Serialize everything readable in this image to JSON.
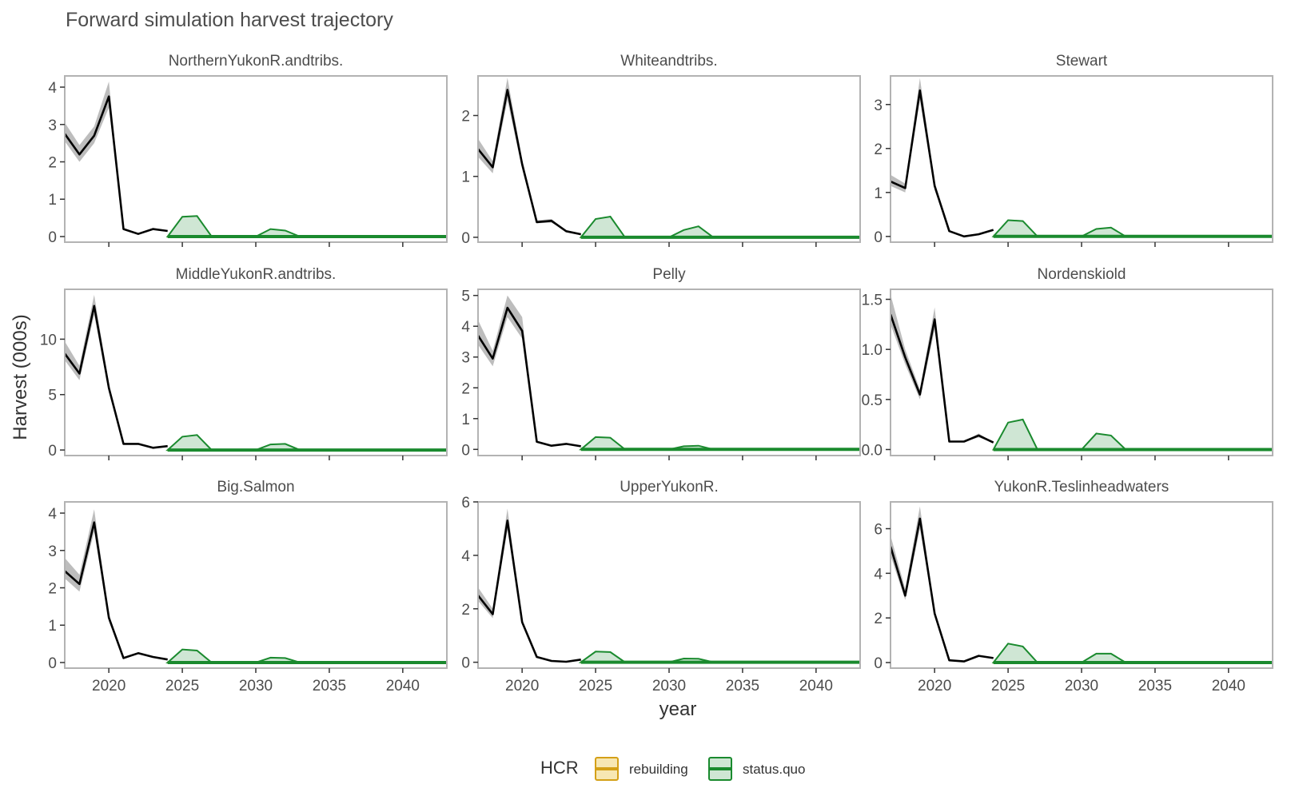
{
  "title": "Forward simulation harvest trajectory",
  "xlabel": "year",
  "ylabel": "Harvest (000s)",
  "legend": {
    "title": "HCR",
    "items": [
      {
        "label": "rebuilding",
        "line": "#d4a017",
        "fill": "#f7e7b3"
      },
      {
        "label": "status.quo",
        "line": "#1a8a2e",
        "fill": "#cfe6d4"
      }
    ]
  },
  "colors": {
    "historic_line": "#000000",
    "historic_band": "#bdbdbd",
    "panel_border": "#b3b3b3",
    "status_quo_line": "#1a8a2e",
    "status_quo_fill": "#cfe6d4",
    "rebuilding_line": "#d4a017"
  },
  "chart_data": [
    {
      "type": "line",
      "title": "NorthernYukonR.andtribs.",
      "xlim": [
        2017,
        2043
      ],
      "ylim": [
        -0.15,
        4.3
      ],
      "x_ticks": [
        2020,
        2025,
        2030,
        2035,
        2040
      ],
      "y_ticks": [
        "0",
        "1",
        "2",
        "3",
        "4"
      ],
      "y_tick_values": [
        0,
        1,
        2,
        3,
        4
      ],
      "historic": {
        "x": [
          2017,
          2018,
          2019,
          2020,
          2021,
          2022,
          2023,
          2024
        ],
        "y": [
          2.75,
          2.2,
          2.7,
          3.75,
          0.2,
          0.07,
          0.2,
          0.15
        ],
        "lo": [
          2.55,
          2.0,
          2.5,
          3.45,
          0.2,
          0.07,
          0.2,
          0.15
        ],
        "hi": [
          3.05,
          2.45,
          2.95,
          4.15,
          0.2,
          0.07,
          0.2,
          0.15
        ]
      },
      "status_quo": {
        "x": [
          2024,
          2025,
          2026,
          2027,
          2030,
          2031,
          2032,
          2033,
          2043
        ],
        "y": [
          0,
          0,
          0,
          0,
          0,
          0,
          0,
          0,
          0
        ],
        "upper": [
          0,
          0.53,
          0.55,
          0,
          0,
          0.2,
          0.16,
          0,
          0
        ]
      }
    },
    {
      "type": "line",
      "title": "Whiteandtribs.",
      "xlim": [
        2017,
        2043
      ],
      "ylim": [
        -0.08,
        2.65
      ],
      "x_ticks": [
        2020,
        2025,
        2030,
        2035,
        2040
      ],
      "y_ticks": [
        "0",
        "1",
        "2"
      ],
      "y_tick_values": [
        0,
        1,
        2
      ],
      "historic": {
        "x": [
          2017,
          2018,
          2019,
          2020,
          2021,
          2022,
          2023,
          2024
        ],
        "y": [
          1.45,
          1.15,
          2.42,
          1.2,
          0.25,
          0.27,
          0.1,
          0.05
        ],
        "lo": [
          1.32,
          1.05,
          2.25,
          1.12,
          0.23,
          0.24,
          0.1,
          0.05
        ],
        "hi": [
          1.62,
          1.25,
          2.62,
          1.28,
          0.28,
          0.3,
          0.1,
          0.05
        ]
      },
      "status_quo": {
        "x": [
          2024,
          2025,
          2026,
          2027,
          2030,
          2031,
          2032,
          2033,
          2043
        ],
        "y": [
          0,
          0,
          0,
          0,
          0,
          0,
          0,
          0,
          0
        ],
        "upper": [
          0,
          0.3,
          0.34,
          0,
          0,
          0.12,
          0.18,
          0,
          0
        ]
      }
    },
    {
      "type": "line",
      "title": "Stewart",
      "xlim": [
        2017,
        2043
      ],
      "ylim": [
        -0.13,
        3.65
      ],
      "x_ticks": [
        2020,
        2025,
        2030,
        2035,
        2040
      ],
      "y_ticks": [
        "0",
        "1",
        "2",
        "3"
      ],
      "y_tick_values": [
        0,
        1,
        2,
        3
      ],
      "historic": {
        "x": [
          2017,
          2018,
          2019,
          2020,
          2021,
          2022,
          2023,
          2024
        ],
        "y": [
          1.25,
          1.1,
          3.32,
          1.15,
          0.12,
          0.0,
          0.05,
          0.15
        ],
        "lo": [
          1.15,
          1.0,
          3.1,
          1.05,
          0.12,
          0.0,
          0.05,
          0.15
        ],
        "hi": [
          1.4,
          1.2,
          3.6,
          1.25,
          0.12,
          0.0,
          0.05,
          0.15
        ]
      },
      "status_quo": {
        "x": [
          2024,
          2025,
          2026,
          2027,
          2030,
          2031,
          2032,
          2033,
          2043
        ],
        "y": [
          0,
          0,
          0,
          0,
          0,
          0,
          0,
          0,
          0
        ],
        "upper": [
          0,
          0.37,
          0.35,
          0,
          0,
          0.17,
          0.2,
          0,
          0
        ]
      }
    },
    {
      "type": "line",
      "title": "MiddleYukonR.andtribs.",
      "xlim": [
        2017,
        2043
      ],
      "ylim": [
        -0.5,
        14.5
      ],
      "x_ticks": [
        2020,
        2025,
        2030,
        2035,
        2040
      ],
      "y_ticks": [
        "0",
        "5",
        "10"
      ],
      "y_tick_values": [
        0,
        5,
        10
      ],
      "historic": {
        "x": [
          2017,
          2018,
          2019,
          2020,
          2021,
          2022,
          2023,
          2024
        ],
        "y": [
          8.7,
          6.9,
          13.0,
          5.6,
          0.55,
          0.55,
          0.2,
          0.35
        ],
        "lo": [
          8.1,
          6.3,
          12.2,
          5.2,
          0.55,
          0.55,
          0.2,
          0.35
        ],
        "hi": [
          9.8,
          7.6,
          14.0,
          6.0,
          0.55,
          0.55,
          0.2,
          0.35
        ]
      },
      "status_quo": {
        "x": [
          2024,
          2025,
          2026,
          2027,
          2030,
          2031,
          2032,
          2033,
          2043
        ],
        "y": [
          0,
          0,
          0,
          0,
          0,
          0,
          0,
          0,
          0
        ],
        "upper": [
          0,
          1.2,
          1.35,
          0,
          0,
          0.5,
          0.55,
          0,
          0
        ]
      }
    },
    {
      "type": "line",
      "title": "Pelly",
      "xlim": [
        2017,
        2043
      ],
      "ylim": [
        -0.2,
        5.2
      ],
      "x_ticks": [
        2020,
        2025,
        2030,
        2035,
        2040
      ],
      "y_ticks": [
        "0",
        "1",
        "2",
        "3",
        "4",
        "5"
      ],
      "y_tick_values": [
        0,
        1,
        2,
        3,
        4,
        5
      ],
      "historic": {
        "x": [
          2017,
          2018,
          2019,
          2020,
          2021,
          2022,
          2023,
          2024
        ],
        "y": [
          3.7,
          2.95,
          4.6,
          3.85,
          0.25,
          0.12,
          0.18,
          0.1
        ],
        "lo": [
          3.4,
          2.7,
          4.3,
          3.6,
          0.25,
          0.12,
          0.18,
          0.1
        ],
        "hi": [
          4.2,
          3.2,
          5.0,
          4.3,
          0.25,
          0.12,
          0.18,
          0.1
        ]
      },
      "status_quo": {
        "x": [
          2024,
          2025,
          2026,
          2027,
          2030,
          2031,
          2032,
          2033,
          2043
        ],
        "y": [
          0,
          0,
          0,
          0,
          0,
          0,
          0,
          0,
          0
        ],
        "upper": [
          0,
          0.4,
          0.38,
          0,
          0,
          0.1,
          0.12,
          0,
          0
        ]
      }
    },
    {
      "type": "line",
      "title": "Nordenskiold",
      "xlim": [
        2017,
        2043
      ],
      "ylim": [
        -0.06,
        1.6
      ],
      "x_ticks": [
        2020,
        2025,
        2030,
        2035,
        2040
      ],
      "y_ticks": [
        "0.0",
        "0.5",
        "1.0",
        "1.5"
      ],
      "y_tick_values": [
        0,
        0.5,
        1,
        1.5
      ],
      "historic": {
        "x": [
          2017,
          2018,
          2019,
          2020,
          2021,
          2022,
          2023,
          2024
        ],
        "y": [
          1.35,
          0.92,
          0.55,
          1.3,
          0.08,
          0.08,
          0.14,
          0.07
        ],
        "lo": [
          1.25,
          0.85,
          0.5,
          1.2,
          0.08,
          0.08,
          0.12,
          0.07
        ],
        "hi": [
          1.55,
          1.0,
          0.6,
          1.42,
          0.08,
          0.08,
          0.16,
          0.07
        ]
      },
      "status_quo": {
        "x": [
          2024,
          2025,
          2026,
          2027,
          2030,
          2031,
          2032,
          2033,
          2043
        ],
        "y": [
          0,
          0,
          0,
          0,
          0,
          0,
          0,
          0,
          0
        ],
        "upper": [
          0,
          0.27,
          0.3,
          0,
          0,
          0.16,
          0.14,
          0,
          0
        ]
      }
    },
    {
      "type": "line",
      "title": "Big.Salmon",
      "xlim": [
        2017,
        2043
      ],
      "ylim": [
        -0.15,
        4.3
      ],
      "x_ticks": [
        2020,
        2025,
        2030,
        2035,
        2040
      ],
      "y_ticks": [
        "0",
        "1",
        "2",
        "3",
        "4"
      ],
      "y_tick_values": [
        0,
        1,
        2,
        3,
        4
      ],
      "historic": {
        "x": [
          2017,
          2018,
          2019,
          2020,
          2021,
          2022,
          2023,
          2024
        ],
        "y": [
          2.45,
          2.1,
          3.75,
          1.2,
          0.12,
          0.25,
          0.15,
          0.08
        ],
        "lo": [
          2.25,
          1.9,
          3.5,
          1.1,
          0.12,
          0.25,
          0.15,
          0.08
        ],
        "hi": [
          2.8,
          2.35,
          4.1,
          1.3,
          0.12,
          0.25,
          0.15,
          0.08
        ]
      },
      "status_quo": {
        "x": [
          2024,
          2025,
          2026,
          2027,
          2030,
          2031,
          2032,
          2033,
          2043
        ],
        "y": [
          0,
          0,
          0,
          0,
          0,
          0,
          0,
          0,
          0
        ],
        "upper": [
          0,
          0.35,
          0.32,
          0,
          0,
          0.13,
          0.12,
          0,
          0
        ]
      }
    },
    {
      "type": "line",
      "title": "UpperYukonR.",
      "xlim": [
        2017,
        2043
      ],
      "ylim": [
        -0.22,
        6.0
      ],
      "x_ticks": [
        2020,
        2025,
        2030,
        2035,
        2040
      ],
      "y_ticks": [
        "0",
        "2",
        "4",
        "6"
      ],
      "y_tick_values": [
        0,
        2,
        4,
        6
      ],
      "historic": {
        "x": [
          2017,
          2018,
          2019,
          2020,
          2021,
          2022,
          2023,
          2024
        ],
        "y": [
          2.5,
          1.8,
          5.3,
          1.5,
          0.2,
          0.05,
          0.02,
          0.1
        ],
        "lo": [
          2.3,
          1.65,
          4.95,
          1.4,
          0.2,
          0.05,
          0.02,
          0.1
        ],
        "hi": [
          2.8,
          2.0,
          5.75,
          1.6,
          0.2,
          0.05,
          0.02,
          0.1
        ]
      },
      "status_quo": {
        "x": [
          2024,
          2025,
          2026,
          2027,
          2030,
          2031,
          2032,
          2033,
          2043
        ],
        "y": [
          0,
          0,
          0,
          0,
          0,
          0,
          0,
          0,
          0
        ],
        "upper": [
          0,
          0.4,
          0.38,
          0,
          0,
          0.14,
          0.13,
          0,
          0
        ]
      }
    },
    {
      "type": "line",
      "title": "YukonR.Teslinheadwaters",
      "xlim": [
        2017,
        2043
      ],
      "ylim": [
        -0.25,
        7.2
      ],
      "x_ticks": [
        2020,
        2025,
        2030,
        2035,
        2040
      ],
      "y_ticks": [
        "0",
        "2",
        "4",
        "6"
      ],
      "y_tick_values": [
        0,
        2,
        4,
        6
      ],
      "historic": {
        "x": [
          2017,
          2018,
          2019,
          2020,
          2021,
          2022,
          2023,
          2024
        ],
        "y": [
          5.2,
          3.0,
          6.45,
          2.2,
          0.1,
          0.05,
          0.3,
          0.2
        ],
        "lo": [
          4.8,
          2.8,
          6.0,
          2.05,
          0.1,
          0.05,
          0.3,
          0.2
        ],
        "hi": [
          5.7,
          3.3,
          7.0,
          2.35,
          0.1,
          0.05,
          0.3,
          0.2
        ]
      },
      "status_quo": {
        "x": [
          2024,
          2025,
          2026,
          2027,
          2030,
          2031,
          2032,
          2033,
          2043
        ],
        "y": [
          0,
          0,
          0,
          0,
          0,
          0,
          0,
          0,
          0
        ],
        "upper": [
          0,
          0.85,
          0.72,
          0,
          0,
          0.4,
          0.4,
          0,
          0
        ]
      }
    }
  ]
}
